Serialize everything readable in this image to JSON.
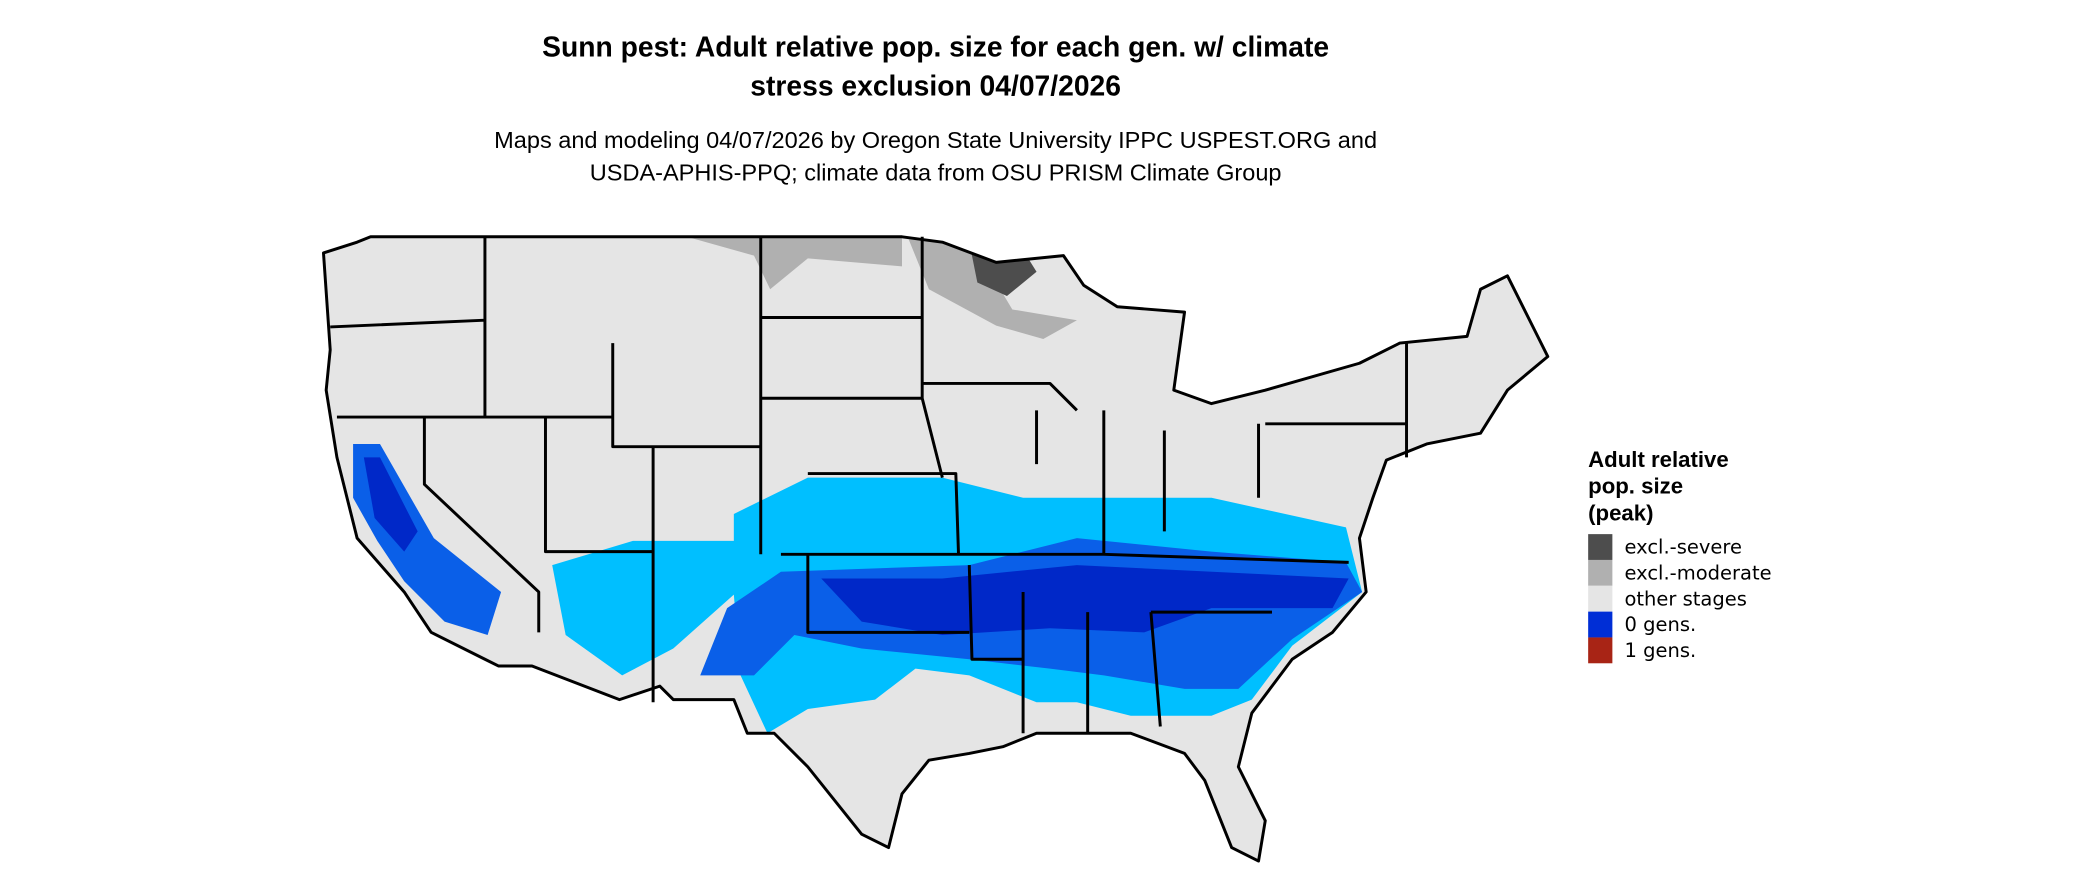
{
  "title": {
    "line1": "Sunn pest: Adult relative pop. size for each gen. w/ climate",
    "line2": "stress exclusion 04/07/2026"
  },
  "subtitle": {
    "line1": "Maps and modeling 04/07/2026 by Oregon State University IPPC USPEST.ORG and",
    "line2": "USDA-APHIS-PPQ; climate data from OSU PRISM Climate Group"
  },
  "map": {
    "region": "Contiguous United States",
    "colors": {
      "land": "#e5e5e5",
      "light_blue": "#00bfff",
      "mid_blue": "#0a5fe8",
      "dark_blue": "#0028c8",
      "excl_moderate": "#b0b0b0",
      "excl_severe": "#4d4d4d"
    }
  },
  "legend": {
    "title_lines": [
      "Adult relative",
      "pop. size",
      "(peak)"
    ],
    "items": [
      {
        "label": "excl.-severe",
        "color": "#4d4d4d"
      },
      {
        "label": "excl.-moderate",
        "color": "#b0b0b0"
      },
      {
        "label": "other stages",
        "color": "#e5e5e5"
      },
      {
        "label": "0 gens.",
        "color": "#002ed6"
      },
      {
        "label": "1 gens.",
        "color": "#a82415"
      }
    ]
  }
}
